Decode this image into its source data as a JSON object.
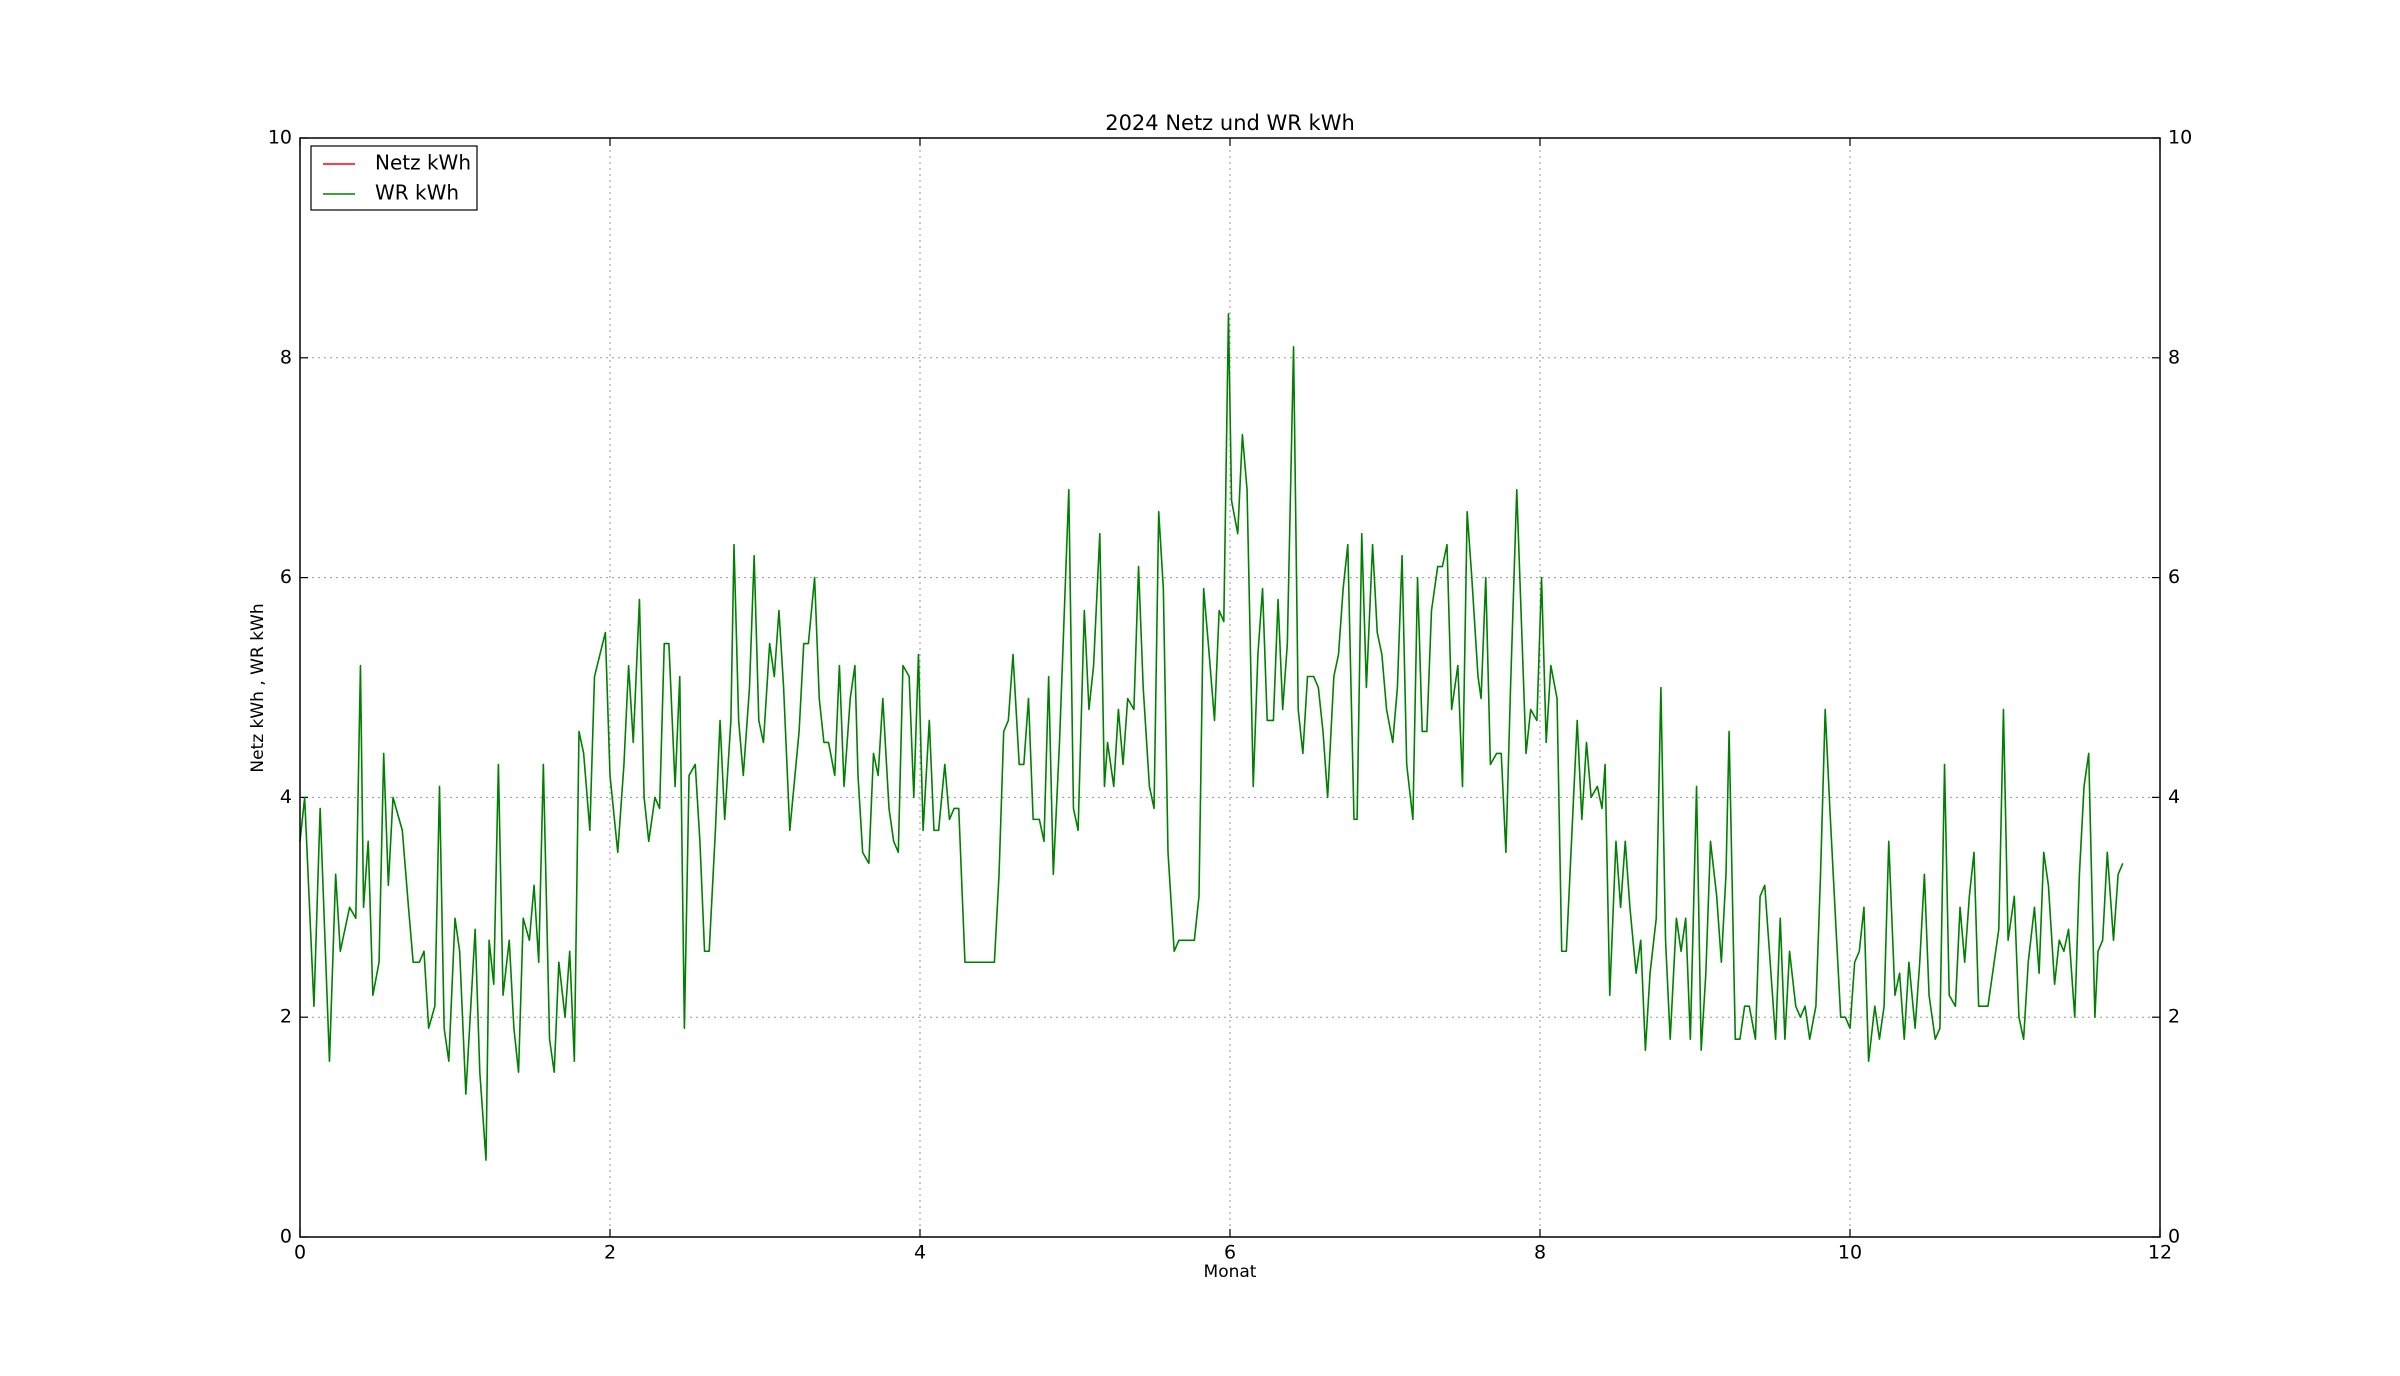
{
  "chart_data": {
    "type": "line",
    "title": "2024 Netz und WR kWh",
    "x_label": "Monat",
    "y_label": "Netz kWh , WR kWh",
    "xlim": [
      0,
      12
    ],
    "xticks": [
      0,
      2,
      4,
      6,
      8,
      10,
      12
    ],
    "ylim": [
      0,
      10
    ],
    "yticks": [
      0,
      2,
      4,
      6,
      8,
      10
    ],
    "y2lim": [
      0,
      10
    ],
    "y2ticks": [
      0,
      2,
      4,
      6,
      8,
      10
    ],
    "grid": true,
    "legend": "upper left",
    "series": [
      {
        "name": "Netz kWh",
        "color": "#ff0000",
        "x": [],
        "values": []
      },
      {
        "name": "WR kWh",
        "color": "#008000",
        "x": [
          0.0,
          0.03,
          0.09,
          0.13,
          0.19,
          0.23,
          0.26,
          0.32,
          0.36,
          0.39,
          0.41,
          0.44,
          0.47,
          0.51,
          0.54,
          0.57,
          0.6,
          0.66,
          0.7,
          0.73,
          0.77,
          0.8,
          0.83,
          0.87,
          0.9,
          0.93,
          0.96,
          1.0,
          1.03,
          1.07,
          1.13,
          1.16,
          1.2,
          1.22,
          1.25,
          1.28,
          1.31,
          1.35,
          1.38,
          1.41,
          1.44,
          1.48,
          1.51,
          1.54,
          1.57,
          1.61,
          1.64,
          1.67,
          1.71,
          1.74,
          1.77,
          1.8,
          1.83,
          1.87,
          1.9,
          1.97,
          2.0,
          2.05,
          2.09,
          2.12,
          2.15,
          2.19,
          2.22,
          2.25,
          2.29,
          2.32,
          2.35,
          2.38,
          2.42,
          2.45,
          2.48,
          2.51,
          2.55,
          2.58,
          2.61,
          2.64,
          2.68,
          2.71,
          2.74,
          2.78,
          2.8,
          2.83,
          2.86,
          2.9,
          2.93,
          2.96,
          2.99,
          3.03,
          3.06,
          3.09,
          3.12,
          3.16,
          3.22,
          3.25,
          3.28,
          3.32,
          3.35,
          3.38,
          3.41,
          3.45,
          3.48,
          3.51,
          3.55,
          3.58,
          3.6,
          3.63,
          3.67,
          3.7,
          3.73,
          3.76,
          3.8,
          3.83,
          3.86,
          3.89,
          3.93,
          3.96,
          3.99,
          4.02,
          4.06,
          4.09,
          4.12,
          4.16,
          4.19,
          4.22,
          4.25,
          4.29,
          4.48,
          4.51,
          4.54,
          4.57,
          4.6,
          4.64,
          4.67,
          4.7,
          4.73,
          4.77,
          4.8,
          4.83,
          4.86,
          4.9,
          4.96,
          4.99,
          5.02,
          5.06,
          5.09,
          5.12,
          5.16,
          5.19,
          5.21,
          5.25,
          5.28,
          5.31,
          5.34,
          5.38,
          5.41,
          5.44,
          5.48,
          5.51,
          5.54,
          5.57,
          5.6,
          5.64,
          5.67,
          5.77,
          5.8,
          5.83,
          5.86,
          5.9,
          5.93,
          5.96,
          5.99,
          6.01,
          6.05,
          6.08,
          6.11,
          6.15,
          6.18,
          6.21,
          6.24,
          6.28,
          6.31,
          6.34,
          6.37,
          6.41,
          6.44,
          6.47,
          6.5,
          6.54,
          6.57,
          6.6,
          6.63,
          6.67,
          6.7,
          6.73,
          6.76,
          6.8,
          6.82,
          6.85,
          6.88,
          6.92,
          6.95,
          6.98,
          7.01,
          7.05,
          7.08,
          7.11,
          7.14,
          7.18,
          7.21,
          7.24,
          7.27,
          7.3,
          7.34,
          7.37,
          7.4,
          7.43,
          7.47,
          7.5,
          7.53,
          7.56,
          7.6,
          7.62,
          7.65,
          7.68,
          7.72,
          7.75,
          7.78,
          7.81,
          7.85,
          7.88,
          7.91,
          7.94,
          7.98,
          8.01,
          8.04,
          8.07,
          8.11,
          8.14,
          8.17,
          8.2,
          8.24,
          8.27,
          8.3,
          8.33,
          8.37,
          8.4,
          8.42,
          8.45,
          8.49,
          8.52,
          8.55,
          8.58,
          8.62,
          8.65,
          8.68,
          8.71,
          8.75,
          8.78,
          8.81,
          8.84,
          8.88,
          8.91,
          8.94,
          8.97,
          9.01,
          9.04,
          9.07,
          9.1,
          9.14,
          9.17,
          9.2,
          9.22,
          9.26,
          9.29,
          9.32,
          9.35,
          9.39,
          9.42,
          9.45,
          9.48,
          9.52,
          9.55,
          9.58,
          9.61,
          9.65,
          9.68,
          9.71,
          9.74,
          9.78,
          9.81,
          9.84,
          9.87,
          9.91,
          9.94,
          9.97,
          10.0,
          10.03,
          10.06,
          10.09,
          10.12,
          10.16,
          10.19,
          10.22,
          10.25,
          10.29,
          10.32,
          10.35,
          10.38,
          10.42,
          10.45,
          10.48,
          10.51,
          10.55,
          10.58,
          10.61,
          10.64,
          10.68,
          10.71,
          10.74,
          10.77,
          10.8,
          10.83,
          10.89,
          10.93,
          10.96,
          10.99,
          11.02,
          11.06,
          11.09,
          11.12,
          11.15,
          11.19,
          11.22,
          11.25,
          11.28,
          11.32,
          11.35,
          11.38,
          11.41,
          11.45,
          11.48,
          11.51,
          11.54,
          11.58,
          11.6,
          11.63,
          11.66,
          11.7,
          11.73,
          11.76
        ],
        "values": [
          3.6,
          4.0,
          2.1,
          3.9,
          1.6,
          3.3,
          2.6,
          3.0,
          2.9,
          5.2,
          3.0,
          3.6,
          2.2,
          2.5,
          4.4,
          3.2,
          4.0,
          3.7,
          3.0,
          2.5,
          2.5,
          2.6,
          1.9,
          2.1,
          4.1,
          1.9,
          1.6,
          2.9,
          2.6,
          1.3,
          2.8,
          1.5,
          0.7,
          2.7,
          2.3,
          4.3,
          2.2,
          2.7,
          1.9,
          1.5,
          2.9,
          2.7,
          3.2,
          2.5,
          4.3,
          1.8,
          1.5,
          2.5,
          2.0,
          2.6,
          1.6,
          4.6,
          4.4,
          3.7,
          5.1,
          5.5,
          4.2,
          3.5,
          4.3,
          5.2,
          4.5,
          5.8,
          4.0,
          3.6,
          4.0,
          3.9,
          5.4,
          5.4,
          4.1,
          5.1,
          1.9,
          4.2,
          4.3,
          3.6,
          2.6,
          2.6,
          3.7,
          4.7,
          3.8,
          4.7,
          6.3,
          4.7,
          4.2,
          5.0,
          6.2,
          4.7,
          4.5,
          5.4,
          5.1,
          5.7,
          5.0,
          3.7,
          4.6,
          5.4,
          5.4,
          6.0,
          4.9,
          4.5,
          4.5,
          4.2,
          5.2,
          4.1,
          4.9,
          5.2,
          4.2,
          3.5,
          3.4,
          4.4,
          4.2,
          4.9,
          3.9,
          3.6,
          3.5,
          5.2,
          5.1,
          4.0,
          5.3,
          3.7,
          4.7,
          3.7,
          3.7,
          4.3,
          3.8,
          3.9,
          3.9,
          2.5,
          2.5,
          3.3,
          4.6,
          4.7,
          5.3,
          4.3,
          4.3,
          4.9,
          3.8,
          3.8,
          3.6,
          5.1,
          3.3,
          4.5,
          6.8,
          3.9,
          3.7,
          5.7,
          4.8,
          5.2,
          6.4,
          4.1,
          4.5,
          4.1,
          4.8,
          4.3,
          4.9,
          4.8,
          6.1,
          5.0,
          4.1,
          3.9,
          6.6,
          5.9,
          3.5,
          2.6,
          2.7,
          2.7,
          3.1,
          5.9,
          5.4,
          4.7,
          5.7,
          5.6,
          8.4,
          6.7,
          6.4,
          7.3,
          6.8,
          4.1,
          5.3,
          5.9,
          4.7,
          4.7,
          5.8,
          4.8,
          5.4,
          8.1,
          4.8,
          4.4,
          5.1,
          5.1,
          5.0,
          4.6,
          4.0,
          5.1,
          5.3,
          5.9,
          6.3,
          3.8,
          3.8,
          6.4,
          5.0,
          6.3,
          5.5,
          5.3,
          4.8,
          4.5,
          5.0,
          6.2,
          4.3,
          3.8,
          6.0,
          4.6,
          4.6,
          5.7,
          6.1,
          6.1,
          6.3,
          4.8,
          5.2,
          4.1,
          6.6,
          6.0,
          5.1,
          4.9,
          6.0,
          4.3,
          4.4,
          4.4,
          3.5,
          5.0,
          6.8,
          5.6,
          4.4,
          4.8,
          4.7,
          6.0,
          4.5,
          5.2,
          4.9,
          2.6,
          2.6,
          3.5,
          4.7,
          3.8,
          4.5,
          4.0,
          4.1,
          3.9,
          4.3,
          2.2,
          3.6,
          3.0,
          3.6,
          3.0,
          2.4,
          2.7,
          1.7,
          2.4,
          2.9,
          5.0,
          2.7,
          1.8,
          2.9,
          2.6,
          2.9,
          1.8,
          4.1,
          1.7,
          2.4,
          3.6,
          3.1,
          2.5,
          3.3,
          4.6,
          1.8,
          1.8,
          2.1,
          2.1,
          1.8,
          3.1,
          3.2,
          2.6,
          1.8,
          2.9,
          1.8,
          2.6,
          2.1,
          2.0,
          2.1,
          1.8,
          2.1,
          3.3,
          4.8,
          3.9,
          2.8,
          2.0,
          2.0,
          1.9,
          2.5,
          2.6,
          3.0,
          1.6,
          2.1,
          1.8,
          2.1,
          3.6,
          2.2,
          2.4,
          1.8,
          2.5,
          1.9,
          2.5,
          3.3,
          2.2,
          1.8,
          1.9,
          4.3,
          2.2,
          2.1,
          3.0,
          2.5,
          3.1,
          3.5,
          2.1,
          2.1,
          2.5,
          2.8,
          4.8,
          2.7,
          3.1,
          2.0,
          1.8,
          2.5,
          3.0,
          2.4,
          3.5,
          3.2,
          2.3,
          2.7,
          2.6,
          2.8,
          2.0,
          3.3,
          4.1,
          4.4,
          2.0,
          2.6,
          2.7,
          3.5,
          2.7,
          3.3,
          3.4
        ]
      }
    ]
  }
}
